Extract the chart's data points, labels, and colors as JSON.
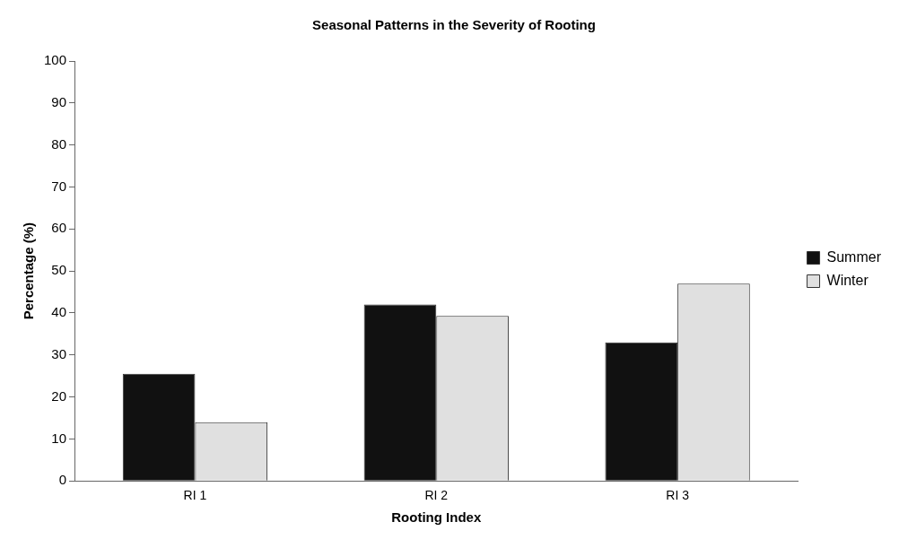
{
  "chart_data": {
    "type": "bar",
    "title": "Seasonal Patterns in the Severity of Rooting",
    "xlabel": "Rooting Index",
    "ylabel": "Percentage (%)",
    "categories": [
      "RI 1",
      "RI 2",
      "RI 3"
    ],
    "series": [
      {
        "name": "Summer",
        "color": "#111111",
        "values": [
          25.5,
          42,
          33
        ]
      },
      {
        "name": "Winter",
        "color": "#e0e0e0",
        "values": [
          14,
          39.3,
          47
        ]
      }
    ],
    "ylim": [
      0,
      100
    ],
    "yticks": [
      0,
      10,
      20,
      30,
      40,
      50,
      60,
      70,
      80,
      90,
      100
    ],
    "grid": false,
    "legend": "right"
  }
}
